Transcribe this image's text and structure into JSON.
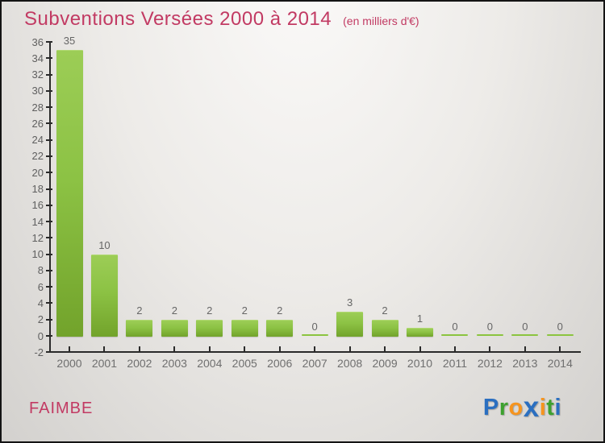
{
  "header": {
    "title": "Subventions Versées 2000 à 2014",
    "subtitle": "(en milliers d'€)",
    "title_color": "#c23a63"
  },
  "chart_data": {
    "type": "bar",
    "title": "Subventions Versées 2000 à 2014",
    "subtitle": "(en milliers d'€)",
    "categories": [
      "2000",
      "2001",
      "2002",
      "2003",
      "2004",
      "2005",
      "2006",
      "2007",
      "2008",
      "2009",
      "2010",
      "2011",
      "2012",
      "2013",
      "2014"
    ],
    "values": [
      35,
      10,
      2,
      2,
      2,
      2,
      2,
      0,
      3,
      2,
      1,
      0,
      0,
      0,
      0
    ],
    "value_labels": [
      "35",
      "10",
      "2",
      "2",
      "2",
      "2",
      "2",
      "0",
      "3",
      "2",
      "1",
      "0",
      "0",
      "0",
      "0"
    ],
    "xlabel": "",
    "ylabel": "",
    "ylim": [
      -2,
      36
    ],
    "ytick_step": 2,
    "grid": false,
    "legend": false,
    "bar_color_top": "#9ccd56",
    "bar_color_bottom": "#72a32b",
    "axis_color": "#2a2a2a",
    "tick_label_color": "#5f5f5f"
  },
  "footer": {
    "org_name": "FAIMBE",
    "logo": {
      "text": "Proxiti",
      "letters": [
        {
          "ch": "P",
          "color": "#2b6fc0",
          "x": false
        },
        {
          "ch": "r",
          "color": "#3da12f",
          "x": false
        },
        {
          "ch": "o",
          "color": "#f6941e",
          "x": false
        },
        {
          "ch": "x",
          "color": "#2b6fc0",
          "x": true
        },
        {
          "ch": "i",
          "color": "#f6941e",
          "x": false
        },
        {
          "ch": "t",
          "color": "#3da12f",
          "x": false
        },
        {
          "ch": "i",
          "color": "#2b6fc0",
          "x": false
        }
      ]
    }
  }
}
